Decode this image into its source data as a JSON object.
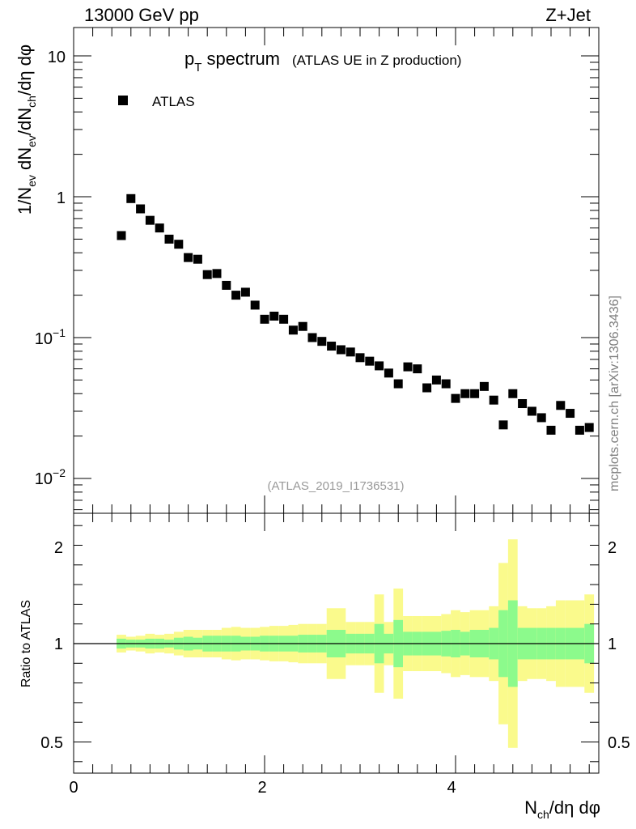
{
  "header": {
    "energy_label": "13000 GeV pp",
    "process_label": "Z+Jet",
    "watermark": "mcplots.cern.ch [arXiv:1306.3436]"
  },
  "chart_data": [
    {
      "type": "scatter",
      "panel": "main",
      "title_main": "p",
      "title_sub": "T",
      "title_rest": " spectrum",
      "title_paren": "(ATLAS UE in Z production)",
      "analysis_label": "(ATLAS_2019_I1736531)",
      "ylabel": "1/N_ev dN_ev/dN_ch/dη dφ",
      "yscale": "log",
      "ylim": [
        0.0055,
        16
      ],
      "xlim": [
        0,
        5.5
      ],
      "y_tick_labels": [
        "10",
        "1",
        "10−1",
        "10−2"
      ],
      "legend": {
        "position": "top-left",
        "entries": [
          {
            "name": "ATLAS",
            "marker": "square",
            "color": "#000000"
          }
        ]
      },
      "series": [
        {
          "name": "ATLAS",
          "x": [
            0.5,
            0.6,
            0.7,
            0.8,
            0.9,
            1.0,
            1.1,
            1.2,
            1.3,
            1.4,
            1.5,
            1.6,
            1.7,
            1.8,
            1.9,
            2.0,
            2.1,
            2.2,
            2.3,
            2.4,
            2.5,
            2.6,
            2.7,
            2.8,
            2.9,
            3.0,
            3.1,
            3.2,
            3.3,
            3.4,
            3.5,
            3.6,
            3.7,
            3.8,
            3.9,
            4.0,
            4.1,
            4.2,
            4.3,
            4.4,
            4.5,
            4.6,
            4.7,
            4.8,
            4.9,
            5.0,
            5.1,
            5.2,
            5.3,
            5.4
          ],
          "y": [
            0.53,
            0.97,
            0.82,
            0.68,
            0.6,
            0.5,
            0.46,
            0.37,
            0.36,
            0.28,
            0.285,
            0.235,
            0.2,
            0.21,
            0.17,
            0.135,
            0.142,
            0.135,
            0.113,
            0.12,
            0.1,
            0.094,
            0.087,
            0.082,
            0.079,
            0.072,
            0.068,
            0.063,
            0.056,
            0.047,
            0.062,
            0.06,
            0.044,
            0.05,
            0.047,
            0.037,
            0.04,
            0.04,
            0.045,
            0.036,
            0.024,
            0.04,
            0.034,
            0.03,
            0.027,
            0.022,
            0.033,
            0.029,
            0.022,
            0.023
          ]
        }
      ]
    },
    {
      "type": "area",
      "panel": "ratio",
      "ylabel": "Ratio to ATLAS",
      "xlabel": "N_ch/dη dφ",
      "ylim": [
        0.35,
        2.45
      ],
      "xlim": [
        0,
        5.5
      ],
      "x_tick_labels": [
        "0",
        "2",
        "4"
      ],
      "y_tick_labels": [
        "0.5",
        "1",
        "2"
      ],
      "reference_line": 1,
      "band_colors": {
        "stat": "#8cfa8c",
        "total": "#fafa8c"
      },
      "bin_edges": [
        0.45,
        0.55,
        0.65,
        0.75,
        0.85,
        0.95,
        1.05,
        1.15,
        1.25,
        1.35,
        1.45,
        1.55,
        1.65,
        1.75,
        1.85,
        1.95,
        2.05,
        2.15,
        2.25,
        2.35,
        2.45,
        2.55,
        2.65,
        2.75,
        2.85,
        2.95,
        3.05,
        3.15,
        3.25,
        3.35,
        3.45,
        3.55,
        3.65,
        3.75,
        3.85,
        3.95,
        4.05,
        4.15,
        4.25,
        4.35,
        4.45,
        4.55,
        4.65,
        4.75,
        4.85,
        4.95,
        5.05,
        5.15,
        5.25,
        5.35,
        5.45
      ],
      "stat_err": [
        0.025,
        0.02,
        0.02,
        0.025,
        0.025,
        0.02,
        0.03,
        0.035,
        0.03,
        0.04,
        0.04,
        0.04,
        0.04,
        0.035,
        0.035,
        0.04,
        0.04,
        0.04,
        0.04,
        0.045,
        0.045,
        0.045,
        0.07,
        0.07,
        0.05,
        0.05,
        0.05,
        0.1,
        0.05,
        0.12,
        0.06,
        0.06,
        0.06,
        0.06,
        0.065,
        0.07,
        0.06,
        0.07,
        0.07,
        0.08,
        0.17,
        0.22,
        0.08,
        0.08,
        0.08,
        0.08,
        0.08,
        0.08,
        0.08,
        0.1
      ],
      "total_err": [
        0.045,
        0.035,
        0.04,
        0.05,
        0.045,
        0.05,
        0.06,
        0.07,
        0.07,
        0.07,
        0.07,
        0.08,
        0.085,
        0.08,
        0.08,
        0.085,
        0.09,
        0.09,
        0.095,
        0.1,
        0.1,
        0.1,
        0.18,
        0.18,
        0.11,
        0.11,
        0.11,
        0.25,
        0.11,
        0.28,
        0.14,
        0.14,
        0.14,
        0.14,
        0.15,
        0.17,
        0.16,
        0.17,
        0.17,
        0.19,
        0.41,
        0.53,
        0.19,
        0.18,
        0.18,
        0.19,
        0.22,
        0.22,
        0.22,
        0.25
      ]
    }
  ]
}
